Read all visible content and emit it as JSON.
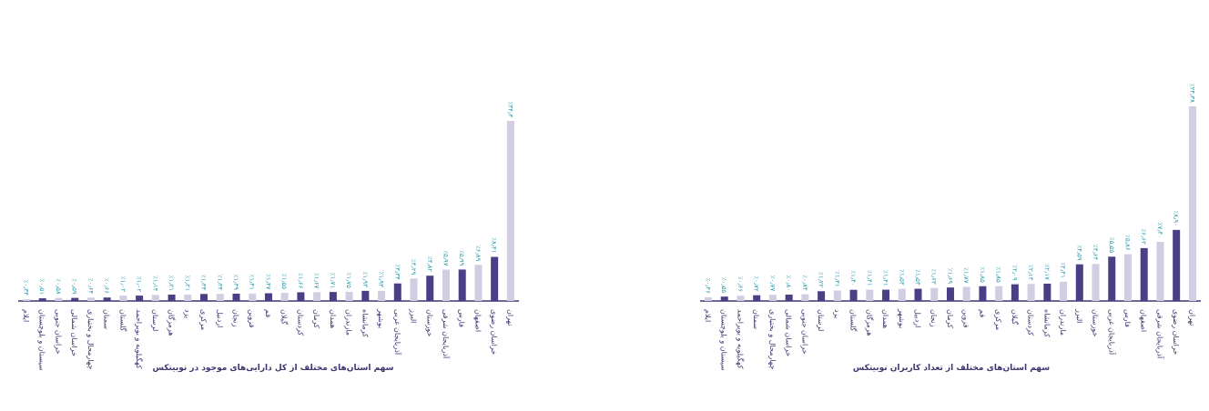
{
  "colors": {
    "dark_bar": "#4a3f86",
    "light_bar": "#d2cde3",
    "value_label": "#2a9db0",
    "text": "#3d3570",
    "axis": "#3d3570"
  },
  "chart_data": [
    {
      "type": "bar",
      "title": "سهم استان‌های مختلف از کل دارایی‌های موجود در نوبیتکس",
      "xlabel": "",
      "ylabel": "",
      "ylim": [
        0,
        35
      ],
      "grid": false,
      "categories": [
        "ایلام",
        "سیستان و بلوچستان",
        "خراسان جنوبی",
        "خراسان شمالی",
        "چهارمحال و بختیاری",
        "سمنان",
        "گلستان",
        "کهگیلویه و بویراحمد",
        "لرستان",
        "هرمزگان",
        "یزد",
        "مرکزی",
        "اردبیل",
        "زنجان",
        "قزوین",
        "قم",
        "گیلان",
        "کردستان",
        "کرمان",
        "همدان",
        "مازندران",
        "کرمانشاه",
        "بوشهر",
        "آذربایجان غربی",
        "البرز",
        "خوزستان",
        "آذربایجان شرقی",
        "فارس",
        "اصفهان",
        "خراسان رضوی",
        "تهران"
      ],
      "values": [
        0.34,
        0.51,
        0.58,
        0.59,
        0.64,
        0.66,
        1.02,
        1.02,
        1.14,
        1.21,
        1.21,
        1.34,
        1.34,
        1.39,
        1.41,
        1.47,
        1.55,
        1.66,
        1.67,
        1.71,
        1.75,
        1.93,
        1.93,
        3.34,
        4.29,
        4.82,
        5.97,
        5.99,
        6.89,
        8.41,
        34.3
      ],
      "value_labels": [
        "٪۰٫۳۴",
        "٪۰٫۵۱",
        "٪۰٫۵۸",
        "٪۰٫۵۹",
        "٪۰٫۶۴",
        "٪۰٫۶۶",
        "٪۱٫۰۲",
        "٪۱٫۰۲",
        "٪۱٫۱۴",
        "٪۱٫۲۱",
        "٪۱٫۲۱",
        "٪۱٫۳۴",
        "٪۱٫۳۴",
        "٪۱٫۳۹",
        "٪۱٫۴۱",
        "٪۱٫۴۷",
        "٪۱٫۵۵",
        "٪۱٫۶۶",
        "٪۱٫۶۷",
        "٪۱٫۷۱",
        "٪۱٫۷۵",
        "٪۱٫۹۳",
        "٪۱٫۹۳",
        "٪۳٫۳۴",
        "٪۴٫۲۹",
        "٪۴٫۸۲",
        "٪۵٫۹۷",
        "٪۵٫۹۹",
        "٪۶٫۸۹",
        "٪۸٫۴۱",
        "٪۳۴٫۳"
      ]
    },
    {
      "type": "bar",
      "title": "سهم استان‌های مختلف از تعداد کاربران نوبیتکس",
      "xlabel": "",
      "ylabel": "",
      "ylim": [
        0,
        25
      ],
      "grid": false,
      "categories": [
        "ایلام",
        "سیستان و بلوچستان",
        "کهگیلویه و بویراحمد",
        "سمنان",
        "چهارمحال و بختیاری",
        "خراسان شمالی",
        "خراسان جنوبی",
        "لرستان",
        "یزد",
        "گلستان",
        "هرمزگان",
        "همدان",
        "بوشهر",
        "اردبیل",
        "زنجان",
        "کرمان",
        "قزوین",
        "قم",
        "مرکزی",
        "گیلان",
        "کردستان",
        "کرمانشاه",
        "مازندران",
        "البرز",
        "خوزستان",
        "آذربایجان غربی",
        "فارس",
        "اصفهان",
        "آذربایجان شرقی",
        "خراسان رضوی",
        "تهران"
      ],
      "values": [
        0.46,
        0.55,
        0.66,
        0.72,
        0.77,
        0.8,
        0.84,
        1.22,
        1.31,
        1.4,
        1.41,
        1.41,
        1.53,
        1.53,
        1.63,
        1.69,
        1.77,
        1.85,
        1.85,
        2.09,
        2.13,
        2.17,
        2.41,
        4.59,
        4.64,
        5.55,
        5.86,
        6.62,
        7.4,
        8.9,
        24.38
      ],
      "value_labels": [
        "٪۰٫۴۶",
        "٪۰٫۵۵",
        "٪۰٫۶۶",
        "٪۰٫۷۲",
        "٪۰٫۷۷",
        "٪۰٫۸۰",
        "٪۰٫۸۴",
        "٪۱٫۲۲",
        "٪۱٫۳۱",
        "٪۱٫۴۰",
        "٪۱٫۴۱",
        "٪۱٫۴۱",
        "٪۱٫۵۳",
        "٪۱٫۵۳",
        "٪۱٫۶۳",
        "٪۱٫۶۹",
        "٪۱٫۷۷",
        "٪۱٫۸۵",
        "٪۱٫۸۵",
        "٪۲٫۰۹",
        "٪۲٫۱۳",
        "٪۲٫۱۷",
        "٪۲٫۴۱",
        "٪۴٫۵۹",
        "٪۴٫۶۴",
        "٪۵٫۵۵",
        "٪۵٫۸۶",
        "٪۶٫۶۲",
        "٪۷٫۴۰",
        "٪۸٫۹۰",
        "٪۲۴٫۳۸"
      ]
    }
  ]
}
